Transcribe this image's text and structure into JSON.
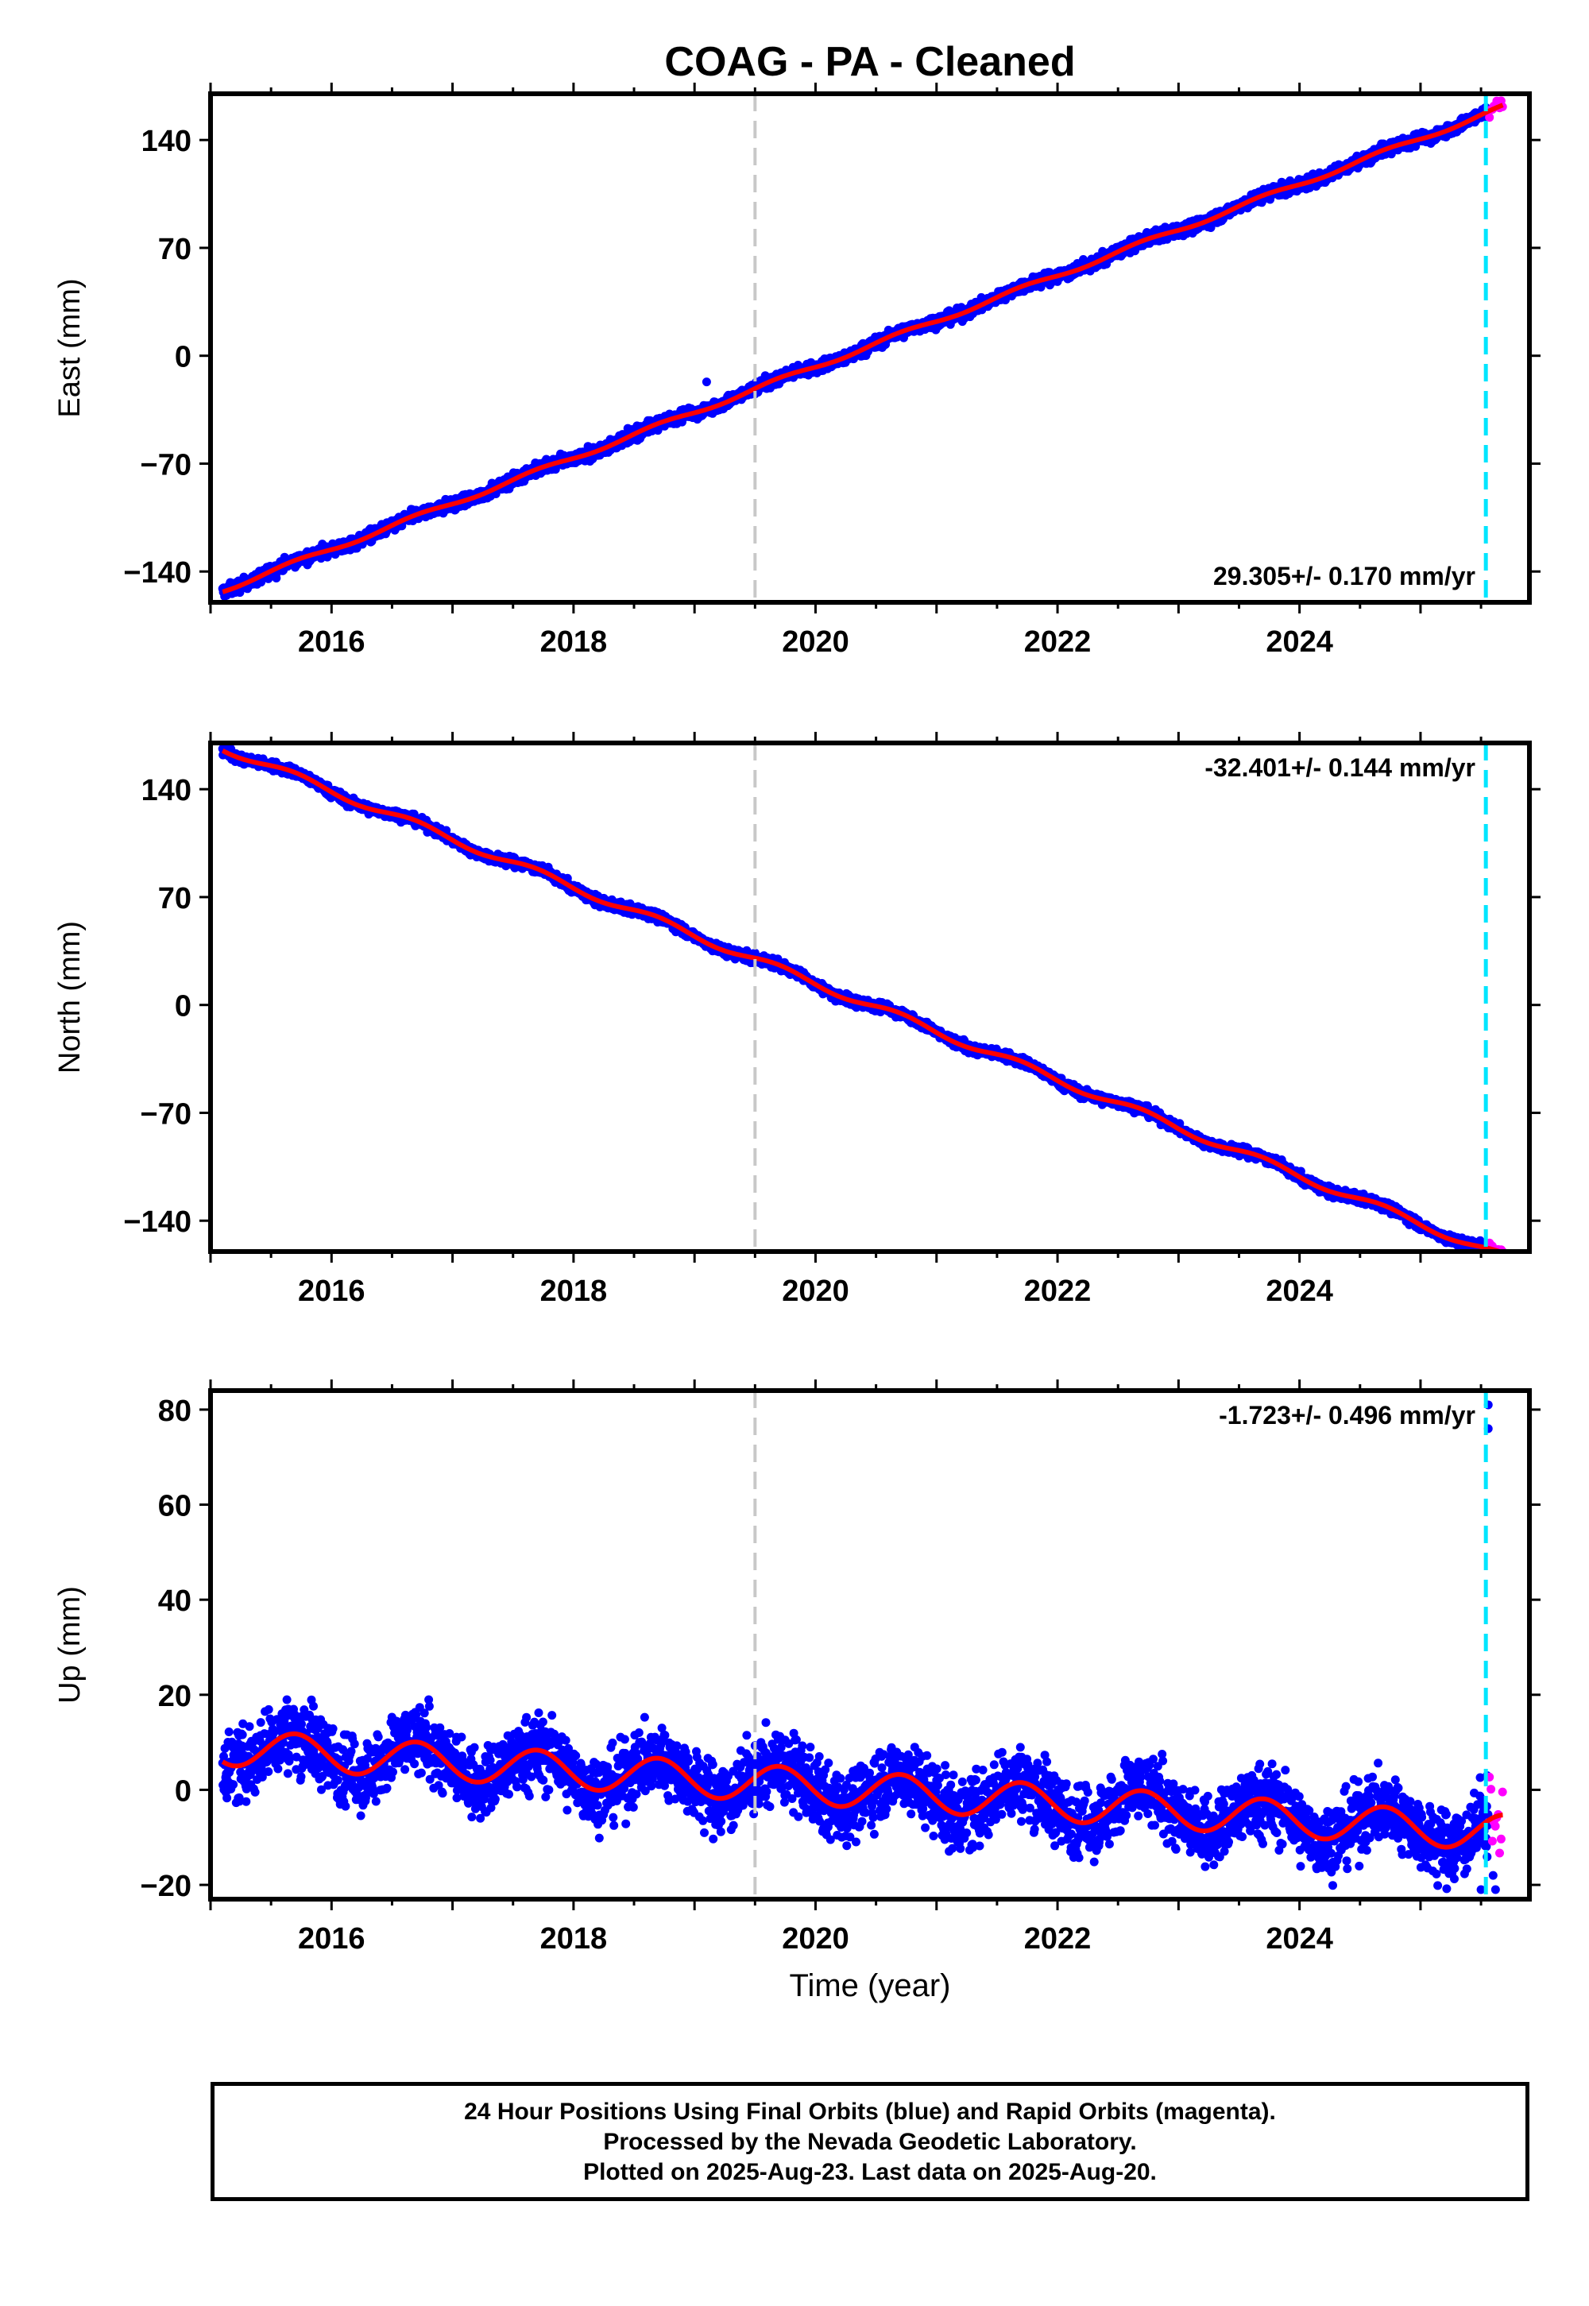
{
  "title": "COAG  - PA - Cleaned",
  "footer": {
    "line1": "24 Hour Positions Using Final Orbits (blue) and Rapid Orbits (magenta).",
    "line2": "Processed by the Nevada Geodetic Laboratory.",
    "line3": "Plotted on 2025-Aug-23. Last data on 2025-Aug-20."
  },
  "colors": {
    "final_orbits": "#0000ff",
    "rapid_orbits": "#ff00ff",
    "model_fit": "#ff0000",
    "equipment_change": "#c8c8c8",
    "rapid_start": "#00e5ff"
  },
  "chart_data": [
    {
      "type": "scatter",
      "component": "east",
      "ylabel": "East (mm)",
      "xlabel": "",
      "xlim": [
        2015.0,
        2025.9
      ],
      "ylim": [
        -160,
        170
      ],
      "yticks": [
        -140,
        -70,
        0,
        70,
        140
      ],
      "xticks": [
        2016,
        2018,
        2020,
        2022,
        2024
      ],
      "velocity_label": "29.305+/- 0.170 mm/yr",
      "velocity_position": "bottom-right",
      "velocity_mm_per_yr": 29.305,
      "start_value_mm": -152,
      "end_value_mm": 160,
      "seasonal_amplitude_mm": 1.5,
      "noise_mm": 2.0,
      "outlier_points": [
        [
          2019.1,
          -17
        ]
      ],
      "equipment_change_year": 2019.5,
      "rapid_orbit_start_year": 2025.54,
      "grid": false
    },
    {
      "type": "scatter",
      "component": "north",
      "ylabel": "North (mm)",
      "xlabel": "",
      "xlim": [
        2015.0,
        2025.9
      ],
      "ylim": [
        -160,
        170
      ],
      "yticks": [
        -140,
        -70,
        0,
        70,
        140
      ],
      "xticks": [
        2016,
        2018,
        2020,
        2022,
        2024
      ],
      "velocity_label": "-32.401+/- 0.144 mm/yr",
      "velocity_position": "top-right",
      "velocity_mm_per_yr": -32.401,
      "start_value_mm": 167,
      "end_value_mm": -162,
      "seasonal_amplitude_mm": 2.5,
      "noise_mm": 1.6,
      "outlier_points": [],
      "equipment_change_year": 2019.5,
      "rapid_orbit_start_year": 2025.54,
      "grid": false
    },
    {
      "type": "scatter",
      "component": "up",
      "ylabel": "Up (mm)",
      "xlabel": "Time (year)",
      "xlim": [
        2015.0,
        2025.9
      ],
      "ylim": [
        -23,
        84
      ],
      "yticks": [
        -20,
        0,
        20,
        40,
        60,
        80
      ],
      "xticks": [
        2016,
        2018,
        2020,
        2022,
        2024
      ],
      "velocity_label": "-1.723+/- 0.496 mm/yr",
      "velocity_position": "top-right",
      "velocity_mm_per_yr": -1.723,
      "start_value_mm": 9,
      "end_value_mm": -9,
      "seasonal_amplitude_mm": 3.8,
      "noise_mm": 3.8,
      "outlier_points": [
        [
          2025.56,
          81
        ],
        [
          2025.56,
          76
        ],
        [
          2025.55,
          3
        ],
        [
          2025.5,
          -21
        ],
        [
          2025.62,
          -21
        ],
        [
          2025.6,
          -18
        ]
      ],
      "equipment_change_year": 2019.5,
      "rapid_orbit_start_year": 2025.54,
      "grid": false
    }
  ]
}
